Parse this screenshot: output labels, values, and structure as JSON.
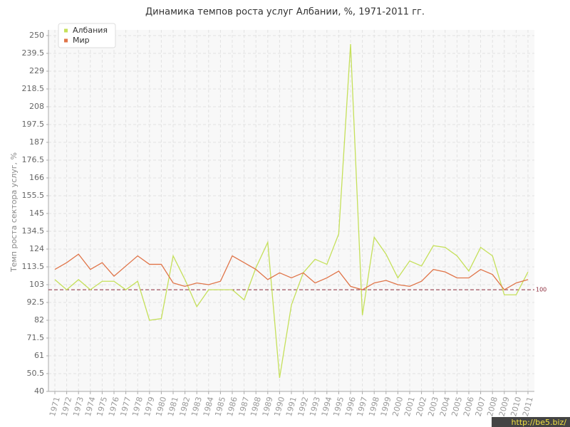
{
  "chart_data": {
    "type": "line",
    "title": "Динамика темпов роста услуг Албании, %, 1971-2011 гг.",
    "y_label": "Темп роста сектора услуг, %",
    "categories": [
      "1971",
      "1972",
      "1973",
      "1974",
      "1975",
      "1976",
      "1977",
      "1978",
      "1979",
      "1980",
      "1981",
      "1982",
      "1983",
      "1984",
      "1985",
      "1986",
      "1987",
      "1988",
      "1989",
      "1990",
      "1991",
      "1992",
      "1993",
      "1994",
      "1995",
      "1996",
      "1997",
      "1998",
      "1999",
      "2000",
      "2001",
      "2002",
      "2003",
      "2004",
      "2005",
      "2006",
      "2007",
      "2008",
      "2009",
      "2010",
      "2011"
    ],
    "series": [
      {
        "name": "Албания",
        "color": "#c5e05a",
        "values": [
          106,
          100,
          106,
          100,
          105,
          105,
          100,
          105,
          82,
          83,
          120,
          106,
          90,
          100,
          100,
          100,
          94,
          113,
          128,
          48,
          91,
          110,
          118,
          115,
          133,
          245,
          85,
          131,
          121,
          107,
          117,
          114,
          126,
          125,
          120,
          111,
          125,
          120,
          97,
          97,
          110.5
        ]
      },
      {
        "name": "Мир",
        "color": "#e07448",
        "values": [
          112,
          116,
          121,
          112,
          116,
          108,
          114,
          120,
          115,
          115,
          104,
          102,
          104,
          103,
          105,
          120,
          116,
          112,
          106,
          110,
          107,
          110,
          104,
          107,
          111,
          102,
          100,
          104,
          105.5,
          103,
          102,
          105,
          112,
          110.5,
          107,
          107,
          112,
          109,
          100,
          104,
          106
        ]
      }
    ],
    "ylim": [
      40,
      250
    ],
    "yticks": [
      40,
      50.5,
      61,
      71.5,
      82,
      92.5,
      103,
      113.5,
      124,
      134.5,
      145,
      155.5,
      166,
      176.5,
      187,
      197.5,
      208,
      218.5,
      229,
      239.5,
      250
    ],
    "grid": true,
    "legend": "top-left",
    "reference_line": {
      "value": 100,
      "color": "#8b2a3a"
    },
    "watermark": "http://be5.biz/"
  }
}
